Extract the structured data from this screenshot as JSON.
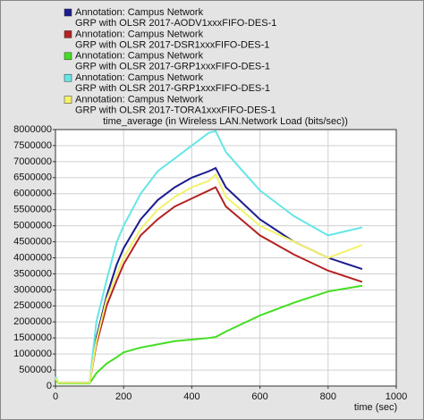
{
  "chart_data": {
    "type": "line",
    "title": "time_average (in Wireless LAN.Network Load (bits/sec))",
    "x_label": "time (sec)",
    "x": [
      0,
      10,
      100,
      120,
      150,
      180,
      200,
      250,
      300,
      350,
      400,
      450,
      470,
      500,
      600,
      700,
      800,
      900
    ],
    "series": [
      {
        "annotation": "Annotation: Campus Network",
        "name": "GRP with OLSR 2017-AODV1xxxFIFO-DES-1",
        "color": "#1c1c8e",
        "values": [
          200000,
          100000,
          100000,
          1500000,
          2800000,
          3800000,
          4300000,
          5200000,
          5800000,
          6200000,
          6500000,
          6700000,
          6800000,
          6200000,
          5200000,
          4500000,
          4000000,
          3650000
        ]
      },
      {
        "annotation": "Annotation: Campus Network",
        "name": "GRP with OLSR 2017-DSR1xxxFIFO-DES-1",
        "color": "#b52222",
        "values": [
          250000,
          100000,
          100000,
          1300000,
          2500000,
          3300000,
          3800000,
          4700000,
          5200000,
          5600000,
          5850000,
          6100000,
          6200000,
          5600000,
          4700000,
          4100000,
          3600000,
          3250000
        ]
      },
      {
        "annotation": "Annotation: Campus Network",
        "name": "GRP with OLSR 2017-GRP1xxxFIFO-DES-1",
        "color": "#44dd22",
        "values": [
          200000,
          80000,
          80000,
          400000,
          700000,
          900000,
          1050000,
          1200000,
          1300000,
          1400000,
          1450000,
          1500000,
          1530000,
          1700000,
          2200000,
          2600000,
          2950000,
          3130000
        ]
      },
      {
        "annotation": "Annotation: Campus Network",
        "name": "GRP with OLSR 2017-GRP1xxxFIFO-DES-1",
        "color": "#66e6e6",
        "values": [
          300000,
          100000,
          100000,
          2000000,
          3300000,
          4500000,
          5000000,
          6000000,
          6700000,
          7100000,
          7500000,
          7900000,
          7950000,
          7300000,
          6100000,
          5300000,
          4700000,
          4950000
        ]
      },
      {
        "annotation": "Annotation: Campus Network",
        "name": "GRP with OLSR 2017-TORA1xxxFIFO-DES-1",
        "color": "#f2f26a",
        "values": [
          250000,
          100000,
          100000,
          1400000,
          2700000,
          3500000,
          4000000,
          4900000,
          5500000,
          5900000,
          6200000,
          6400000,
          6600000,
          5900000,
          5000000,
          4500000,
          4000000,
          4400000
        ]
      }
    ],
    "xlim": [
      0,
      1000
    ],
    "xticks": [
      0,
      200,
      400,
      600,
      800,
      1000
    ],
    "ylim": [
      0,
      8000000
    ],
    "yticks": [
      0,
      500000,
      1000000,
      1500000,
      2000000,
      2500000,
      3000000,
      3500000,
      4000000,
      4500000,
      5000000,
      5500000,
      6000000,
      6500000,
      7000000,
      7500000,
      8000000
    ],
    "grid": true
  }
}
